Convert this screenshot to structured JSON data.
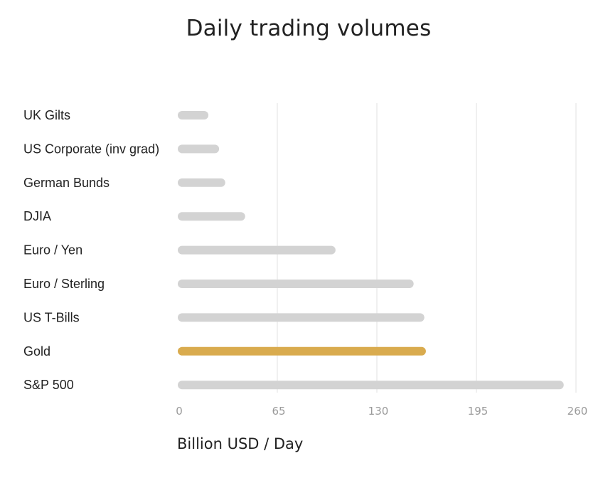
{
  "chart_data": {
    "type": "bar",
    "orientation": "horizontal",
    "title": "Daily trading volumes",
    "xlabel": "Billion USD / Day",
    "ylabel": "",
    "xlim": [
      0,
      260
    ],
    "xticks": [
      "0",
      "65",
      "130",
      "195",
      "260"
    ],
    "grid": true,
    "categories": [
      "UK Gilts",
      "US Corporate (inv grad)",
      "German Bunds",
      "DJIA",
      "Euro / Yen",
      "Euro / Sterling",
      "US T-Bills",
      "Gold",
      "S&P 500"
    ],
    "values": [
      20,
      27,
      31,
      44,
      103,
      154,
      161,
      162,
      252
    ],
    "highlight": "Gold",
    "colors": {
      "bar": "#d3d3d3",
      "highlight": "#d9ab4e",
      "grid": "#e6e6e6",
      "tick_label": "#9a9a9a"
    }
  }
}
